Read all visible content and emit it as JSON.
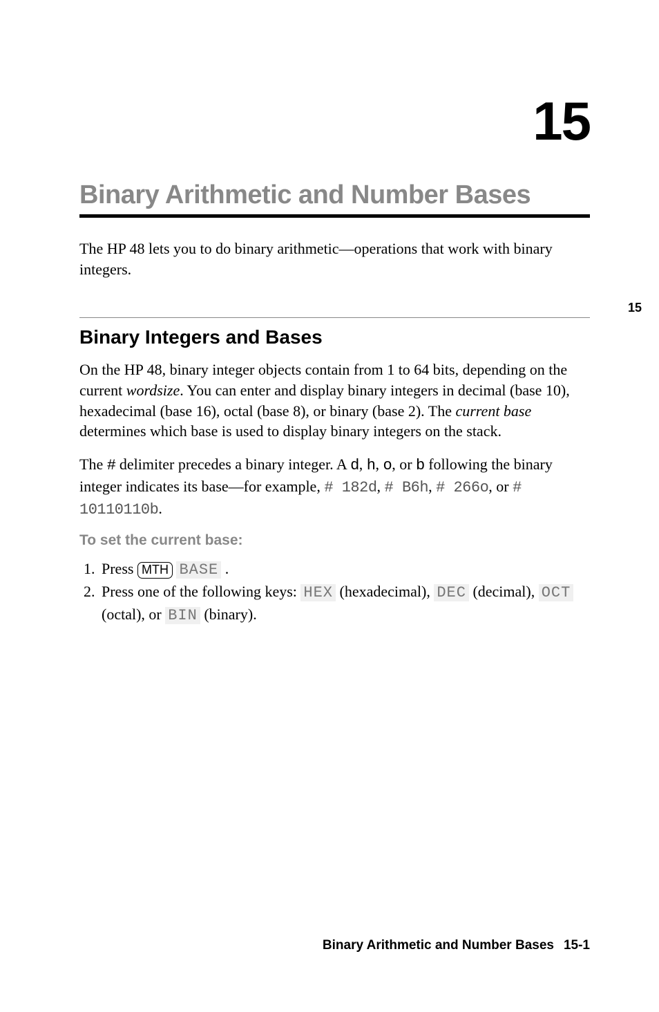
{
  "chapter": {
    "number": "15",
    "title": "Binary Arithmetic and Number Bases",
    "side_tab": "15"
  },
  "intro": "The HP 48 lets you to do binary arithmetic—operations that work with binary integers.",
  "section": {
    "title": "Binary Integers and Bases",
    "para1_a": "On the HP 48, binary integer objects contain from 1 to 64 bits, depending on the current ",
    "para1_wordsize": "wordsize",
    "para1_b": ". You can enter and display binary integers in decimal (base 10), hexadecimal (base 16), octal (base 8), or binary (base 2). The ",
    "para1_currentbase": "current base",
    "para1_c": " determines which base is used to display binary integers on the stack.",
    "para2_a": "The ",
    "para2_hash": "#",
    "para2_b": " delimiter precedes a binary integer. A ",
    "para2_d": "d",
    "para2_c": ", ",
    "para2_h": "h",
    "para2_c2": ", ",
    "para2_o": "o",
    "para2_c3": ", or ",
    "para2_bb": "b",
    "para2_e": " following the binary integer indicates its base—for example, ",
    "para2_ex1": "# 182d",
    "para2_c4": ", ",
    "para2_ex2": "# B6h",
    "para2_c5": ", ",
    "para2_ex3": "# 266o",
    "para2_c6": ", or ",
    "para2_ex4": "# 10110110b",
    "para2_c7": "."
  },
  "subheading": "To set the current base:",
  "steps": {
    "s1_a": "Press ",
    "s1_key": "MTH",
    "s1_b": " ",
    "s1_soft": "BASE",
    "s1_c": " .",
    "s2_a": "Press one of the following keys: ",
    "s2_hex": "HEX",
    "s2_b": " (hexadecimal), ",
    "s2_dec": "DEC",
    "s2_c": " (decimal), ",
    "s2_oct": "OCT",
    "s2_d": " (octal), or ",
    "s2_bin": "BIN",
    "s2_e": " (binary)."
  },
  "footer": {
    "label": "Binary Arithmetic and Number Bases",
    "page": "15-1"
  },
  "colors": {
    "text": "#000000",
    "gray_heading": "#888888",
    "background": "#ffffff",
    "soft_bg": "#f0f0f0",
    "mono_gray": "#555555"
  },
  "fonts": {
    "body": "Times New Roman",
    "heading": "Arial",
    "mono": "Courier New"
  }
}
